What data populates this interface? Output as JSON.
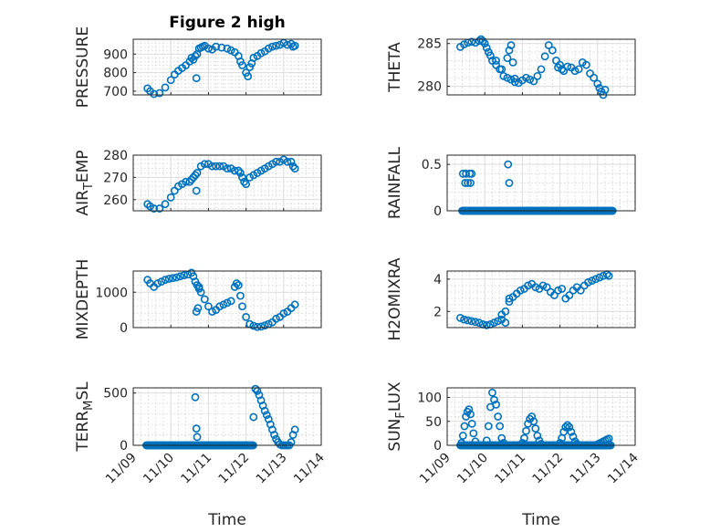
{
  "figure": {
    "title": "Figure 2 high"
  },
  "chart_data": [
    {
      "type": "scatter",
      "ylabel": "PRESSURE",
      "title": "Figure 2 high",
      "xlim": [
        "11/09",
        "11/14"
      ],
      "ylim": [
        680,
        980
      ],
      "yticks": [
        700,
        800,
        900
      ],
      "xticklabels": [
        "11/09",
        "11/10",
        "11/11",
        "11/12",
        "11/13",
        "11/14"
      ],
      "grid": true,
      "minor_grid": true,
      "marker": "circle",
      "color": "#0072BD",
      "series": [
        {
          "x": [
            9.38,
            9.45,
            9.55,
            9.7,
            9.85,
            10.0,
            10.1,
            10.2,
            10.3,
            10.4,
            10.5,
            10.55,
            10.6,
            10.65,
            10.7,
            10.75,
            10.8,
            10.85,
            10.9,
            11.0,
            11.1,
            11.2,
            11.35,
            11.5,
            11.6,
            11.7,
            11.8,
            11.85,
            11.9,
            12.0,
            12.05,
            12.1,
            12.15,
            12.2,
            12.3,
            12.4,
            12.5,
            12.6,
            12.7,
            12.8,
            12.9,
            13.0,
            13.1,
            13.2,
            13.25,
            13.3
          ],
          "y": [
            715,
            700,
            685,
            690,
            720,
            760,
            790,
            810,
            825,
            840,
            860,
            880,
            870,
            890,
            900,
            930,
            935,
            940,
            945,
            930,
            925,
            940,
            935,
            930,
            920,
            910,
            890,
            860,
            840,
            800,
            780,
            830,
            850,
            880,
            890,
            905,
            915,
            930,
            940,
            945,
            950,
            960,
            950,
            955,
            940,
            945
          ]
        },
        {
          "x": [
            10.68
          ],
          "y": [
            770
          ]
        }
      ]
    },
    {
      "type": "scatter",
      "ylabel": "THETA",
      "xlim": [
        "11/09",
        "11/14"
      ],
      "ylim": [
        279,
        285.5
      ],
      "yticks": [
        280,
        285
      ],
      "xticklabels": [
        "11/09",
        "11/10",
        "11/11",
        "11/12",
        "11/13",
        "11/14"
      ],
      "grid": true,
      "minor_grid": true,
      "marker": "circle",
      "color": "#0072BD",
      "series": [
        {
          "x": [
            9.35,
            9.45,
            9.55,
            9.65,
            9.75,
            9.85,
            9.9,
            9.95,
            10.0,
            10.05,
            10.1,
            10.15,
            10.2,
            10.3,
            10.4,
            10.5,
            10.6,
            10.7,
            10.8,
            10.9,
            11.0,
            11.1,
            11.2,
            11.3,
            11.4,
            11.5,
            11.6,
            11.7,
            11.8,
            11.9,
            11.95,
            12.0,
            12.05,
            12.1,
            12.2,
            12.3,
            12.4,
            12.5,
            12.6,
            12.7,
            12.8,
            12.9,
            13.0,
            13.05,
            13.1,
            13.15,
            13.2
          ],
          "y": [
            284.6,
            284.9,
            285.1,
            285.2,
            285.1,
            285.3,
            285.5,
            285.3,
            285.0,
            284.5,
            284.0,
            283.6,
            283.0,
            282.5,
            282.0,
            281.2,
            281.0,
            280.8,
            280.5,
            280.4,
            280.7,
            281.0,
            280.8,
            280.6,
            281.2,
            282.0,
            283.5,
            284.8,
            284.2,
            283.0,
            282.2,
            282.5,
            282.0,
            281.8,
            282.3,
            282.2,
            281.8,
            282.0,
            282.8,
            282.5,
            281.5,
            281.0,
            280.3,
            279.8,
            279.4,
            279.0,
            279.6
          ]
        },
        {
          "x": [
            10.3,
            10.45,
            10.6,
            10.65,
            10.7,
            10.75,
            10.8
          ],
          "y": [
            283.0,
            282.0,
            283.3,
            284.2,
            284.8,
            282.8,
            280.9
          ]
        }
      ]
    },
    {
      "type": "scatter",
      "ylabel": "AIR_TEMP",
      "xlim": [
        "11/09",
        "11/14"
      ],
      "ylim": [
        255,
        280
      ],
      "yticks": [
        260,
        270,
        280
      ],
      "xticklabels": [
        "11/09",
        "11/10",
        "11/11",
        "11/12",
        "11/13",
        "11/14"
      ],
      "grid": true,
      "minor_grid": true,
      "marker": "circle",
      "color": "#0072BD",
      "series": [
        {
          "x": [
            9.38,
            9.45,
            9.55,
            9.7,
            9.85,
            10.0,
            10.1,
            10.2,
            10.3,
            10.4,
            10.5,
            10.55,
            10.6,
            10.65,
            10.7,
            10.8,
            10.9,
            11.0,
            11.1,
            11.2,
            11.3,
            11.4,
            11.5,
            11.6,
            11.7,
            11.8,
            11.85,
            11.9,
            11.95,
            12.0,
            12.1,
            12.2,
            12.3,
            12.4,
            12.5,
            12.6,
            12.7,
            12.8,
            12.9,
            13.0,
            13.1,
            13.2,
            13.25,
            13.3
          ],
          "y": [
            258,
            257,
            256,
            256,
            258,
            261,
            264,
            266,
            267,
            268,
            268,
            269,
            270,
            271,
            272,
            275,
            276,
            276,
            275,
            275,
            275,
            275,
            274,
            274,
            273,
            273,
            272,
            270,
            268,
            267,
            270,
            271,
            272,
            273,
            274,
            275,
            276,
            277,
            277,
            278,
            277,
            277,
            275,
            274
          ]
        },
        {
          "x": [
            10.68
          ],
          "y": [
            264
          ]
        }
      ]
    },
    {
      "type": "scatter",
      "ylabel": "RAINFALL",
      "xlim": [
        "11/09",
        "11/14"
      ],
      "ylim": [
        0,
        0.6
      ],
      "yticks": [
        0,
        0.5
      ],
      "xticklabels": [
        "11/09",
        "11/10",
        "11/11",
        "11/12",
        "11/13",
        "11/14"
      ],
      "grid": true,
      "minor_grid": true,
      "marker": "circle",
      "color": "#0072BD",
      "series": [
        {
          "x_range": [
            9.4,
            13.4
          ],
          "y": 0
        },
        {
          "x": [
            9.42,
            9.48,
            9.5,
            9.55,
            9.6,
            9.62,
            9.65,
            10.62,
            10.65
          ],
          "y": [
            0.4,
            0.3,
            0.4,
            0.3,
            0.4,
            0.3,
            0.4,
            0.5,
            0.3
          ]
        }
      ]
    },
    {
      "type": "scatter",
      "ylabel": "MIXDEPTH",
      "xlim": [
        "11/09",
        "11/14"
      ],
      "ylim": [
        0,
        1600
      ],
      "yticks": [
        0,
        1000
      ],
      "xticklabels": [
        "11/09",
        "11/10",
        "11/11",
        "11/12",
        "11/13",
        "11/14"
      ],
      "grid": true,
      "minor_grid": true,
      "marker": "circle",
      "color": "#0072BD",
      "series": [
        {
          "x": [
            9.38,
            9.45,
            9.55,
            9.65,
            9.75,
            9.85,
            9.95,
            10.05,
            10.15,
            10.25,
            10.35,
            10.45,
            10.55,
            10.6,
            10.65,
            10.7,
            10.75,
            10.8,
            10.9,
            11.0,
            11.1,
            11.2,
            11.3,
            11.4,
            11.5,
            11.6,
            11.7,
            11.75,
            11.8,
            11.85,
            11.9,
            12.0,
            12.1,
            12.2,
            12.3,
            12.4,
            12.5,
            12.6,
            12.7,
            12.8,
            12.9,
            13.0,
            13.1,
            13.2,
            13.3
          ],
          "y": [
            1350,
            1250,
            1150,
            1250,
            1300,
            1350,
            1380,
            1400,
            1420,
            1450,
            1480,
            1500,
            1550,
            1450,
            1300,
            1200,
            1100,
            1000,
            800,
            600,
            450,
            500,
            600,
            650,
            700,
            750,
            1150,
            1250,
            1200,
            900,
            600,
            300,
            100,
            50,
            20,
            30,
            60,
            100,
            150,
            250,
            300,
            400,
            450,
            550,
            650
          ]
        },
        {
          "x": [
            10.68,
            10.72,
            10.75
          ],
          "y": [
            450,
            550,
            1150
          ]
        }
      ]
    },
    {
      "type": "scatter",
      "ylabel": "H2OMIXRA",
      "xlim": [
        "11/09",
        "11/14"
      ],
      "ylim": [
        1,
        4.5
      ],
      "yticks": [
        2,
        4
      ],
      "xticklabels": [
        "11/09",
        "11/10",
        "11/11",
        "11/12",
        "11/13",
        "11/14"
      ],
      "grid": true,
      "minor_grid": true,
      "marker": "circle",
      "color": "#0072BD",
      "series": [
        {
          "x": [
            9.35,
            9.45,
            9.55,
            9.65,
            9.75,
            9.85,
            9.95,
            10.05,
            10.15,
            10.25,
            10.35,
            10.45,
            10.55,
            10.65,
            10.75,
            10.85,
            10.95,
            11.05,
            11.15,
            11.25,
            11.35,
            11.45,
            11.55,
            11.65,
            11.75,
            11.85,
            11.95,
            12.05,
            12.15,
            12.25,
            12.35,
            12.45,
            12.55,
            12.65,
            12.75,
            12.85,
            12.95,
            13.05,
            13.15,
            13.25,
            13.3
          ],
          "y": [
            1.6,
            1.5,
            1.45,
            1.4,
            1.35,
            1.3,
            1.2,
            1.15,
            1.2,
            1.3,
            1.4,
            1.5,
            2.0,
            2.6,
            2.9,
            3.1,
            3.3,
            3.4,
            3.6,
            3.7,
            3.5,
            3.4,
            3.6,
            3.5,
            3.2,
            3.0,
            3.3,
            3.4,
            2.8,
            3.0,
            3.3,
            3.5,
            3.3,
            3.6,
            3.8,
            3.9,
            4.0,
            4.1,
            4.2,
            4.3,
            4.2
          ]
        },
        {
          "x": [
            10.45,
            10.55,
            10.65
          ],
          "y": [
            1.8,
            1.3,
            2.8
          ]
        }
      ]
    },
    {
      "type": "scatter",
      "ylabel": "TERR_MSL",
      "xlim": [
        "11/09",
        "11/14"
      ],
      "ylim": [
        0,
        550
      ],
      "yticks": [
        0,
        500
      ],
      "xticklabels": [
        "11/09",
        "11/10",
        "11/11",
        "11/12",
        "11/13",
        "11/14"
      ],
      "xlabel": "Time",
      "grid": true,
      "minor_grid": true,
      "marker": "circle",
      "color": "#0072BD",
      "series": [
        {
          "x_range": [
            9.35,
            12.2
          ],
          "y": 0
        },
        {
          "x": [
            10.65,
            10.68,
            10.7,
            12.2
          ],
          "y": [
            460,
            160,
            80,
            270
          ]
        },
        {
          "x": [
            12.25,
            12.3,
            12.35,
            12.4,
            12.45,
            12.5,
            12.55,
            12.6,
            12.65,
            12.7,
            12.75,
            12.8,
            12.85,
            12.9,
            12.95,
            13.0,
            13.05,
            13.1,
            13.15,
            13.2,
            13.25,
            13.3
          ],
          "y": [
            540,
            520,
            480,
            430,
            380,
            330,
            290,
            250,
            200,
            150,
            100,
            60,
            30,
            10,
            0,
            0,
            0,
            0,
            0,
            30,
            100,
            150
          ]
        }
      ]
    },
    {
      "type": "scatter",
      "ylabel": "SUN_FLUX",
      "xlim": [
        "11/09",
        "11/14"
      ],
      "ylim": [
        0,
        120
      ],
      "yticks": [
        0,
        50,
        100
      ],
      "xticklabels": [
        "11/09",
        "11/10",
        "11/11",
        "11/12",
        "11/13",
        "11/14"
      ],
      "xlabel": "Time",
      "grid": true,
      "minor_grid": true,
      "marker": "circle",
      "color": "#0072BD",
      "series": [
        {
          "x_range": [
            9.35,
            13.35
          ],
          "y": 0
        },
        {
          "x": [
            9.38,
            9.42,
            9.46,
            9.5,
            9.54,
            9.58,
            9.62,
            9.66,
            9.7,
            9.75
          ],
          "y": [
            5,
            20,
            40,
            60,
            70,
            75,
            65,
            45,
            25,
            8
          ]
        },
        {
          "x": [
            10.05,
            10.1,
            10.15,
            10.2,
            10.25,
            10.3,
            10.35,
            10.4,
            10.45,
            10.5
          ],
          "y": [
            10,
            40,
            80,
            110,
            95,
            85,
            60,
            40,
            15,
            5
          ]
        },
        {
          "x": [
            11.0,
            11.05,
            11.1,
            11.15,
            11.2,
            11.25,
            11.3,
            11.35,
            11.4,
            11.45,
            11.5
          ],
          "y": [
            5,
            15,
            30,
            45,
            55,
            60,
            50,
            35,
            20,
            10,
            3
          ]
        },
        {
          "x": [
            12.0,
            12.05,
            12.1,
            12.15,
            12.2,
            12.25,
            12.3,
            12.35,
            12.4,
            12.45
          ],
          "y": [
            5,
            15,
            28,
            38,
            42,
            38,
            28,
            18,
            8,
            3
          ]
        },
        {
          "x": [
            13.0,
            13.05,
            13.1,
            13.15,
            13.2,
            13.25,
            13.3
          ],
          "y": [
            2,
            4,
            6,
            8,
            10,
            12,
            14
          ]
        }
      ]
    }
  ]
}
